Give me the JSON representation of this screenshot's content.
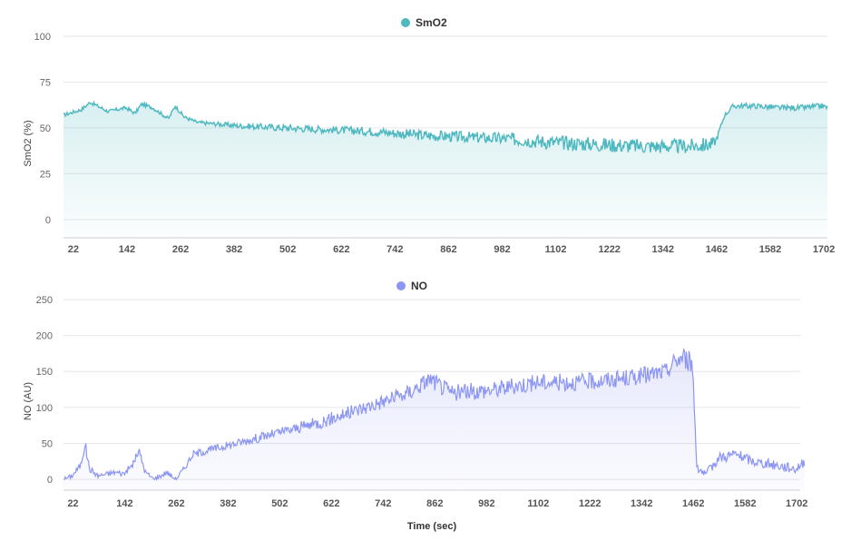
{
  "chart_data": [
    {
      "type": "area",
      "series": [
        {
          "name": "SmO2",
          "color": "#4db8bf"
        }
      ],
      "legend": "top-center",
      "ylabel": "SmO2 (%)",
      "xlabel": "",
      "yticks": [
        "100",
        "75",
        "50",
        "25",
        "0"
      ],
      "ylim": [
        -10,
        100
      ],
      "xticks": [
        "22",
        "142",
        "262",
        "382",
        "502",
        "622",
        "742",
        "862",
        "982",
        "1102",
        "1222",
        "1342",
        "1462",
        "1582",
        "1702"
      ],
      "xlim": [
        0,
        1710
      ],
      "grid": true,
      "x": [
        0,
        40,
        60,
        100,
        140,
        160,
        175,
        200,
        235,
        250,
        270,
        300,
        400,
        500,
        600,
        700,
        800,
        900,
        1000,
        1100,
        1200,
        1300,
        1400,
        1450,
        1460,
        1470,
        1480,
        1500,
        1550,
        1600,
        1650,
        1700,
        1710
      ],
      "y": [
        57,
        60,
        64,
        59,
        61,
        58,
        63,
        61,
        55,
        62,
        56,
        53,
        51,
        50,
        49,
        48,
        46,
        45,
        44,
        42,
        41,
        40,
        40,
        41,
        43,
        50,
        57,
        62,
        62,
        61,
        61,
        62,
        61
      ],
      "noise": [
        1,
        1,
        1,
        1,
        1,
        1,
        1,
        1,
        1,
        1,
        1,
        1,
        1.5,
        2,
        2,
        2.5,
        3,
        3,
        3.5,
        4,
        4,
        4,
        4,
        4,
        2,
        1,
        1,
        1.5,
        1.5,
        1.5,
        1.5,
        1.5,
        1.5
      ]
    },
    {
      "type": "area",
      "series": [
        {
          "name": "NO",
          "color": "#8c96f2"
        }
      ],
      "legend": "top-center",
      "ylabel": "NO (AU)",
      "xlabel": "Time (sec)",
      "yticks": [
        "250",
        "200",
        "150",
        "100",
        "50",
        "0"
      ],
      "ylim": [
        -15,
        250
      ],
      "xticks": [
        "22",
        "142",
        "262",
        "382",
        "502",
        "622",
        "742",
        "862",
        "982",
        "1102",
        "1222",
        "1342",
        "1462",
        "1582",
        "1702"
      ],
      "xlim": [
        0,
        1710
      ],
      "grid": true,
      "x": [
        0,
        20,
        40,
        50,
        60,
        80,
        120,
        140,
        160,
        175,
        190,
        210,
        240,
        260,
        280,
        300,
        400,
        500,
        600,
        700,
        800,
        850,
        900,
        1000,
        1100,
        1200,
        1300,
        1400,
        1420,
        1440,
        1460,
        1470,
        1490,
        1520,
        1560,
        1600,
        1650,
        1700,
        1720
      ],
      "y": [
        0,
        5,
        20,
        50,
        15,
        5,
        10,
        8,
        20,
        40,
        10,
        0,
        10,
        0,
        15,
        35,
        50,
        65,
        80,
        100,
        120,
        140,
        120,
        125,
        135,
        135,
        140,
        150,
        165,
        170,
        160,
        20,
        5,
        30,
        35,
        25,
        20,
        15,
        25
      ],
      "noise": [
        3,
        3,
        5,
        8,
        5,
        3,
        4,
        4,
        5,
        6,
        4,
        3,
        4,
        3,
        4,
        5,
        6,
        7,
        9,
        10,
        12,
        12,
        12,
        12,
        12,
        12,
        12,
        12,
        14,
        15,
        15,
        8,
        6,
        8,
        8,
        7,
        7,
        7,
        7
      ]
    }
  ]
}
